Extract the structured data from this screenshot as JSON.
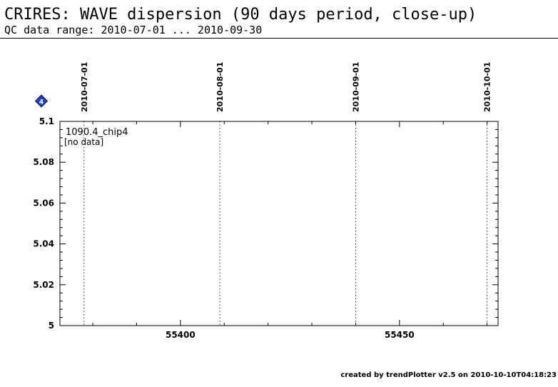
{
  "header": {
    "title": "CRIRES: WAVE dispersion (90 days period, close-up)",
    "subtitle": "QC data range: 2010-07-01 ... 2010-09-30"
  },
  "footer": {
    "text": "created by trendPlotter v2.5 on 2010-10-10T04:18:23"
  },
  "chart_data": {
    "type": "scatter",
    "title": "",
    "xlabel": "",
    "ylabel": "",
    "xlim": [
      55372.5,
      55472.5
    ],
    "ylim": [
      5.0,
      5.1
    ],
    "x_ticks": [
      55400,
      55450
    ],
    "y_ticks": [
      5.0,
      5.02,
      5.04,
      5.06,
      5.08,
      5.1
    ],
    "y_tick_labels": [
      "5",
      "5.02",
      "5.04",
      "5.06",
      "5.08",
      "5.1"
    ],
    "date_markers": [
      {
        "mjd": 55378,
        "label": "2010-07-01"
      },
      {
        "mjd": 55409,
        "label": "2010-08-01"
      },
      {
        "mjd": 55440,
        "label": "2010-09-01"
      },
      {
        "mjd": 55470,
        "label": "2010-10-01"
      }
    ],
    "series": [
      {
        "name": "1090.4_chip4",
        "x": [],
        "y": []
      }
    ],
    "annotation": "[no data]",
    "marker_badge": "4",
    "badge_color": "#1a3fd6"
  }
}
